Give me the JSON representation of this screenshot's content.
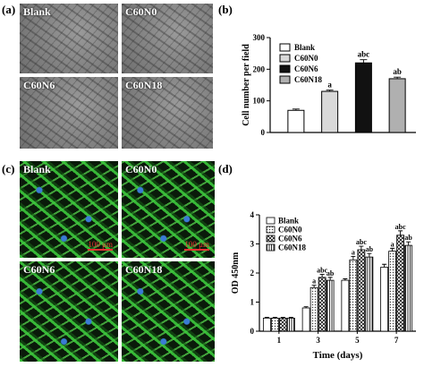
{
  "panel_labels": [
    "(a)",
    "(b)",
    "(c)",
    "(d)"
  ],
  "panel_a": {
    "labels": [
      "Blank",
      "C60N0",
      "C60N6",
      "C60N18"
    ]
  },
  "panel_c": {
    "labels": [
      "Blank",
      "C60N0",
      "C60N6",
      "C60N18"
    ],
    "scale_bar": "100 μm"
  },
  "chart_data": [
    {
      "type": "bar",
      "y_label": "Cell number per field",
      "categories": [
        "Blank",
        "C60N0",
        "C60N6",
        "C60N18"
      ],
      "values": [
        70,
        130,
        220,
        170
      ],
      "errors": [
        4,
        4,
        10,
        5
      ],
      "annotations": [
        null,
        "a",
        "abc",
        "ab"
      ],
      "colors": [
        "#ffffff",
        "#d9d9d9",
        "#111111",
        "#b0b0b0"
      ],
      "ylim": [
        0,
        300
      ],
      "yticks": [
        0,
        100,
        200,
        300
      ]
    },
    {
      "type": "grouped_bar",
      "y_label": "OD 450nm",
      "x_label": "Time (days)",
      "categories": [
        "1",
        "3",
        "5",
        "7"
      ],
      "series": [
        {
          "name": "Blank",
          "pattern": "none",
          "values": [
            0.45,
            0.8,
            1.75,
            2.2
          ],
          "errors": [
            0.03,
            0.04,
            0.05,
            0.1
          ],
          "annotations": [
            null,
            null,
            null,
            null
          ]
        },
        {
          "name": "C60N0",
          "pattern": "dots",
          "values": [
            0.45,
            1.5,
            2.45,
            2.75
          ],
          "errors": [
            0.03,
            0.08,
            0.12,
            0.1
          ],
          "annotations": [
            null,
            "a",
            "a",
            "a"
          ]
        },
        {
          "name": "C60N6",
          "pattern": "crosshatch",
          "values": [
            0.45,
            1.85,
            2.8,
            3.3
          ],
          "errors": [
            0.03,
            0.1,
            0.12,
            0.15
          ],
          "annotations": [
            null,
            "abc",
            "abc",
            "abc"
          ]
        },
        {
          "name": "C60N18",
          "pattern": "vertical",
          "values": [
            0.45,
            1.75,
            2.55,
            2.95
          ],
          "errors": [
            0.03,
            0.1,
            0.12,
            0.12
          ],
          "annotations": [
            null,
            "ab",
            "ab",
            "ab"
          ]
        }
      ],
      "ylim": [
        0,
        4
      ],
      "yticks": [
        0,
        1,
        2,
        3,
        4
      ]
    }
  ]
}
